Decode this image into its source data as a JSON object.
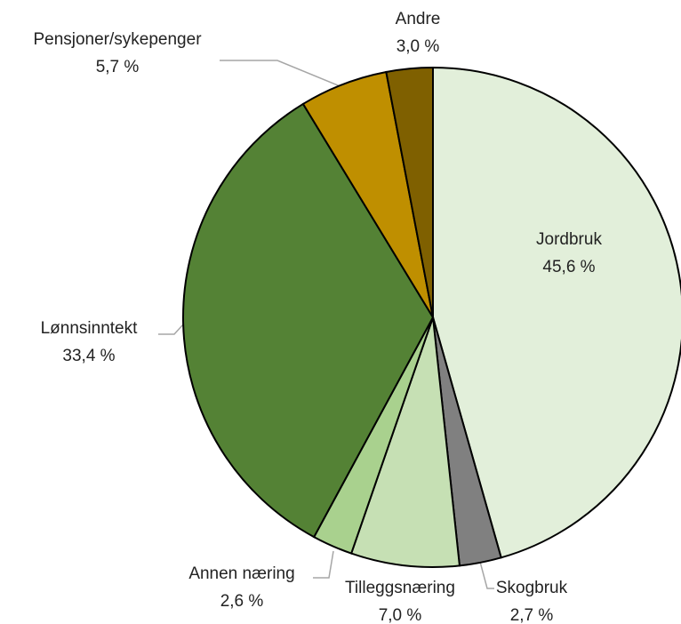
{
  "chart_data": {
    "type": "pie",
    "categories": [
      "Jordbruk",
      "Skogbruk",
      "Tilleggsnæring",
      "Annen næring",
      "Lønnsinntekt",
      "Pensjoner/sykepenger",
      "Andre"
    ],
    "values": [
      45.6,
      2.7,
      7.0,
      2.6,
      33.4,
      5.7,
      3.0
    ],
    "value_labels": [
      "45,6 %",
      "2,7 %",
      "7,0 %",
      "2,6 %",
      "33,4 %",
      "5,7 %",
      "3,0 %"
    ],
    "colors": [
      "#e2efda",
      "#808080",
      "#c6e0b4",
      "#a9d18e",
      "#548235",
      "#bf8f00",
      "#7f6000"
    ]
  }
}
